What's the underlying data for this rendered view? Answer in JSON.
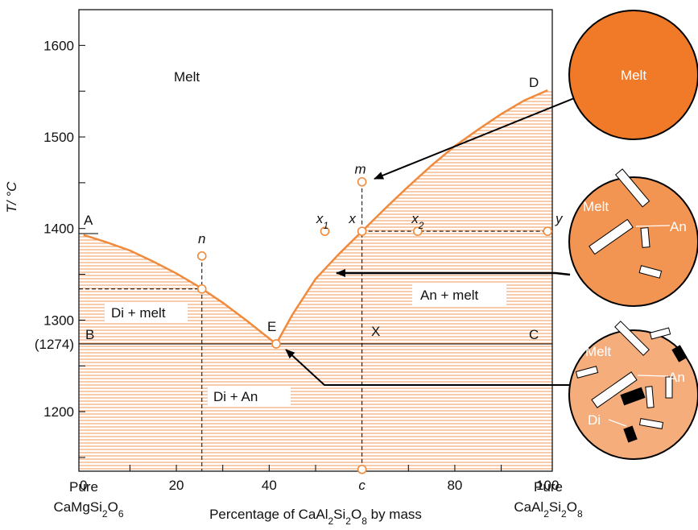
{
  "axes": {
    "x_label": "Percentage of CaAl2Si2O8 by mass",
    "y_label": "T/ °C",
    "xlim": [
      -1,
      101
    ],
    "ylim": [
      1135,
      1639
    ],
    "xticks": [
      0,
      20,
      40,
      {
        "value": 60,
        "label": "c"
      },
      80,
      100
    ],
    "xminorticks": [
      10,
      20,
      30,
      40,
      50,
      60,
      70,
      80,
      90
    ],
    "yticks": [
      1200,
      {
        "value": 1274,
        "label": "(1274)"
      },
      1300,
      1400,
      1500,
      1600
    ],
    "yminorticks": [
      1150,
      1200,
      1250,
      1300,
      1350,
      1400,
      1450,
      1500,
      1550,
      1600
    ]
  },
  "end_labels": [
    {
      "title": "Pure",
      "formula": "CaMgSi2O6"
    },
    {
      "title": "Pure",
      "formula": "CaAl2Si2O8"
    }
  ],
  "liquidus": {
    "left": {
      "x": [
        0,
        5,
        10,
        15,
        20,
        25,
        30,
        35,
        41.5
      ],
      "y": [
        1393,
        1385,
        1376,
        1364,
        1351,
        1336,
        1319,
        1300,
        1274
      ]
    },
    "right": {
      "x": [
        41.5,
        45,
        50,
        55,
        60,
        65,
        70,
        75,
        80,
        85,
        90,
        95,
        100
      ],
      "y": [
        1274,
        1306,
        1345,
        1372,
        1397,
        1422,
        1446,
        1469,
        1490,
        1508,
        1525,
        1540,
        1551
      ]
    }
  },
  "eutectic_T": 1274,
  "points": [
    {
      "label": "n",
      "x": 25.5,
      "y": 1370
    },
    {
      "x": 25.5,
      "y": 1334
    },
    {
      "x": 41.5,
      "y": 1274
    },
    {
      "label": "x1",
      "x": 52,
      "y": 1397
    },
    {
      "label": "m",
      "x": 60,
      "y": 1451
    },
    {
      "label": "x",
      "x": 60,
      "y": 1397
    },
    {
      "x": 60,
      "y": 1137
    },
    {
      "label": "x2",
      "x": 72,
      "y": 1397
    },
    {
      "label": "y",
      "x": 100,
      "y": 1397
    }
  ],
  "letters": [
    "A",
    "B",
    "C",
    "D",
    "E",
    "X"
  ],
  "regions": [
    "Melt",
    "Di + melt",
    "An + melt",
    "Di + An"
  ],
  "insets": [
    {
      "labels": [
        "Melt"
      ]
    },
    {
      "labels": [
        "Melt",
        "An"
      ]
    },
    {
      "labels": [
        "Melt",
        "An",
        "Di"
      ]
    }
  ]
}
